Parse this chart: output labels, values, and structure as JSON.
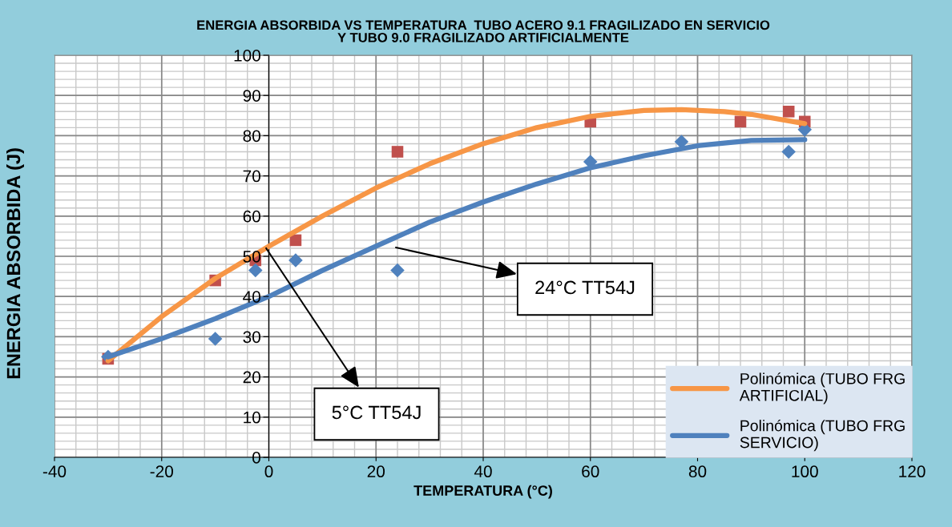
{
  "chart_data": {
    "type": "scatter",
    "title": "ENERGIA ABSORBIDA VS TEMPERATURA  TUBO ACERO 9.1 FRAGILIZADO EN SERVICIO\nY TUBO 9.0 FRAGILIZADO ARTIFICIALMENTE",
    "xlabel": "TEMPERATURA (°C)",
    "ylabel": "ENERGIA ABSORBIDA (J)",
    "series": [
      {
        "marker": "square",
        "color": "#c0504d",
        "x": [
          -30,
          -10,
          -2.5,
          5,
          24,
          60,
          88,
          97,
          100
        ],
        "values": [
          24.5,
          44,
          49,
          54,
          76,
          83.5,
          83.5,
          86,
          83.5
        ]
      },
      {
        "marker": "diamond",
        "color": "#4f81bd",
        "x": [
          -30,
          -10,
          -2.5,
          5,
          24,
          60,
          77,
          97,
          100
        ],
        "values": [
          25,
          29.5,
          46.5,
          49,
          46.5,
          73.5,
          78.5,
          76,
          81.5
        ]
      },
      {
        "type": "line",
        "name": "Polinómica (TUBO FRG ARTIFICIAL)",
        "color": "#f79646",
        "x": [
          -30,
          -20,
          -10,
          0,
          10,
          20,
          30,
          40,
          50,
          60,
          70,
          77,
          85,
          90,
          100
        ],
        "values": [
          24,
          35,
          44.5,
          52.5,
          60,
          67,
          73,
          78,
          82,
          84.8,
          86.3,
          86.5,
          86,
          85.3,
          83
        ]
      },
      {
        "type": "line",
        "name": "Polinómica (TUBO FRG SERVICIO)",
        "color": "#4f81bd",
        "x": [
          -30,
          -20,
          -10,
          0,
          10,
          20,
          30,
          40,
          50,
          60,
          70,
          80,
          90,
          100
        ],
        "values": [
          25,
          29.5,
          34.5,
          40,
          46.5,
          52.5,
          58.5,
          63.5,
          68,
          72,
          75,
          77.5,
          78.8,
          79
        ]
      }
    ],
    "annotations": [
      {
        "text": "5°C TT54J",
        "x": -0.5,
        "y": 52
      },
      "24°C TT54J"
    ],
    "xlim": [
      -40,
      120
    ],
    "xticks": [
      -40,
      -20,
      0,
      20,
      40,
      60,
      80,
      100,
      120
    ],
    "ylim": [
      0,
      100
    ],
    "yticks": [
      0,
      10,
      20,
      30,
      40,
      50,
      60,
      70,
      80,
      90,
      100
    ],
    "grid": true,
    "legend": "bottom right",
    "line_style": "solid"
  }
}
